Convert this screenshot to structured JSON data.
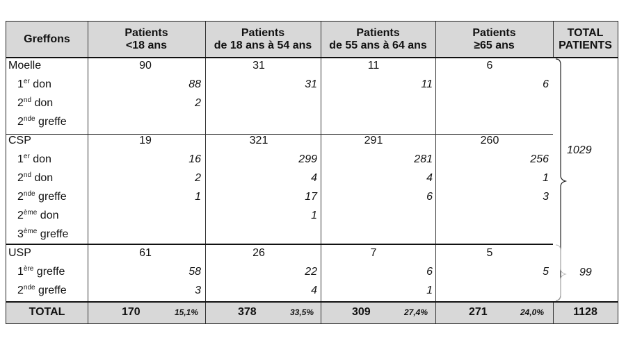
{
  "headers": {
    "greffons": "Greffons",
    "col1": [
      "Patients",
      "<18 ans"
    ],
    "col2": [
      "Patients",
      "de 18 ans à 54 ans"
    ],
    "col3": [
      "Patients",
      "de 55 ans à 64 ans"
    ],
    "col4": [
      "Patients",
      "≥65 ans"
    ],
    "total": [
      "TOTAL",
      "PATIENTS"
    ]
  },
  "groups": [
    {
      "name": "Moelle",
      "totals": [
        "90",
        "31",
        "11",
        "6"
      ],
      "subrows": [
        {
          "base": "1",
          "sup": "er",
          "rest": " don",
          "values": [
            "88",
            "31",
            "11",
            "6"
          ]
        },
        {
          "base": "2",
          "sup": "nd",
          "rest": " don",
          "values": [
            "2",
            "",
            "",
            ""
          ]
        },
        {
          "base": "2",
          "sup": "nde",
          "rest": " greffe",
          "values": [
            "",
            "",
            "",
            ""
          ]
        }
      ]
    },
    {
      "name": "CSP",
      "totals": [
        "19",
        "321",
        "291",
        "260"
      ],
      "subrows": [
        {
          "base": "1",
          "sup": "er",
          "rest": " don",
          "values": [
            "16",
            "299",
            "281",
            "256"
          ]
        },
        {
          "base": "2",
          "sup": "nd",
          "rest": " don",
          "values": [
            "2",
            "4",
            "4",
            "1"
          ]
        },
        {
          "base": "2",
          "sup": "nde",
          "rest": " greffe",
          "values": [
            "1",
            "17",
            "6",
            "3"
          ]
        },
        {
          "base": "2",
          "sup": "ème",
          "rest": " don",
          "values": [
            "",
            "1",
            "",
            ""
          ]
        },
        {
          "base": "3",
          "sup": "ème",
          "rest": " greffe",
          "values": [
            "",
            "",
            "",
            ""
          ]
        }
      ]
    },
    {
      "name": "USP",
      "totals": [
        "61",
        "26",
        "7",
        "5"
      ],
      "subrows": [
        {
          "base": "1",
          "sup": "ère",
          "rest": " greffe",
          "values": [
            "58",
            "22",
            "6",
            "5"
          ]
        },
        {
          "base": "2",
          "sup": "nde",
          "rest": " greffe",
          "values": [
            "3",
            "4",
            "1",
            ""
          ]
        }
      ]
    }
  ],
  "brace_totals": [
    "1029",
    "99"
  ],
  "total_row": {
    "label": "TOTAL",
    "values": [
      "170",
      "378",
      "309",
      "271"
    ],
    "percents": [
      "15,1%",
      "33,5%",
      "27,4%",
      "24,0%"
    ],
    "grand": "1128"
  }
}
